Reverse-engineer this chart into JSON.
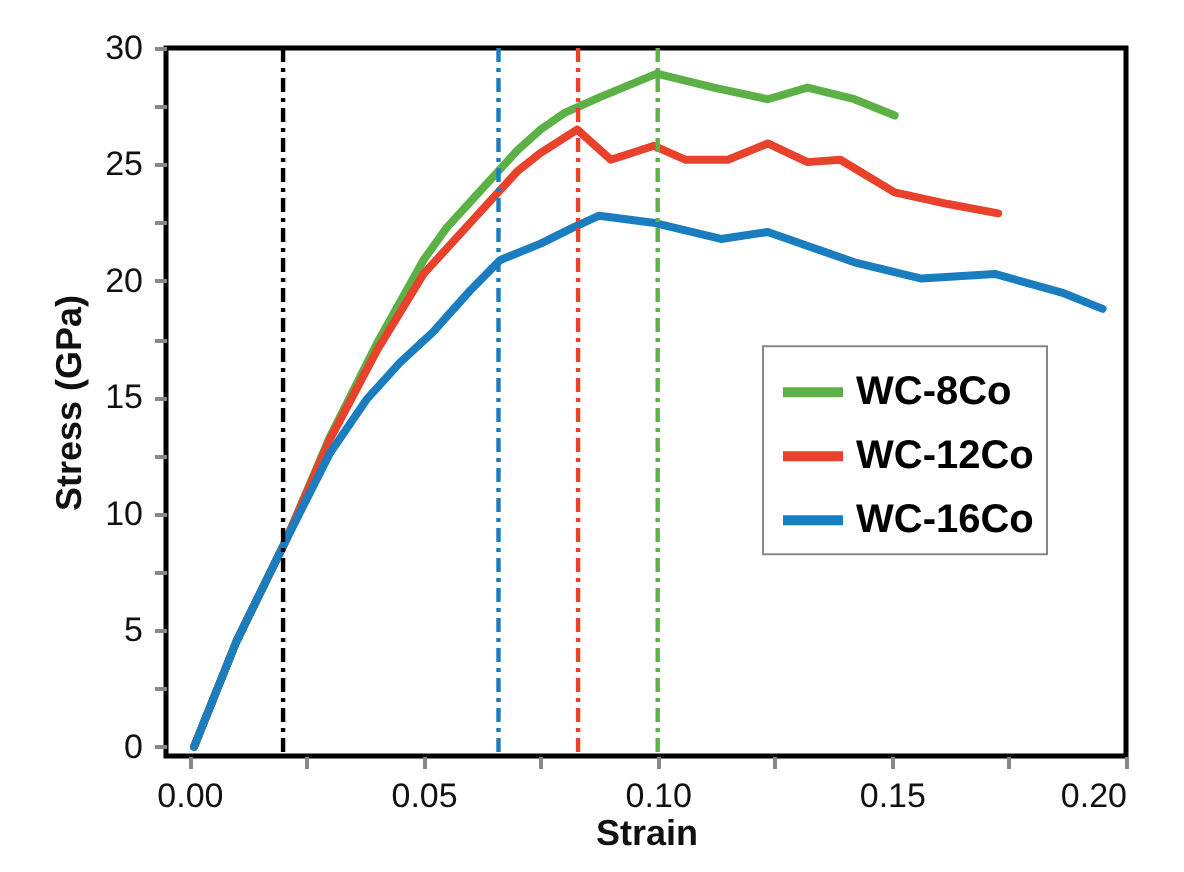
{
  "chart_data": {
    "type": "line",
    "xlabel": "Strain",
    "ylabel": "Stress (GPa)",
    "xlim": [
      -0.005,
      0.2
    ],
    "ylim": [
      -0.4,
      30
    ],
    "xticks": [
      {
        "value": 0,
        "label": "0.00"
      },
      {
        "value": 0.025,
        "label": null
      },
      {
        "value": 0.05,
        "label": "0.05"
      },
      {
        "value": 0.075,
        "label": null
      },
      {
        "value": 0.1,
        "label": "0.10"
      },
      {
        "value": 0.125,
        "label": null
      },
      {
        "value": 0.15,
        "label": "0.15"
      },
      {
        "value": 0.175,
        "label": null
      },
      {
        "value": 0.2,
        "label": "0.20"
      }
    ],
    "yticks": [
      0,
      {
        "value": 2.5,
        "label": null
      },
      5,
      {
        "value": 7.5,
        "label": null
      },
      10,
      {
        "value": 12.5,
        "label": null
      },
      15,
      {
        "value": 17.5,
        "label": null
      },
      20,
      {
        "value": 22.5,
        "label": null
      },
      25,
      {
        "value": 27.5,
        "label": null
      },
      30
    ],
    "legend": "right",
    "grid": false,
    "series": [
      {
        "name": "WC-8Co",
        "color": "#5cb146",
        "x": [
          0.001,
          0.01,
          0.0207,
          0.03,
          0.04,
          0.05,
          0.055,
          0.06,
          0.07,
          0.075,
          0.08,
          0.0878,
          0.0998,
          0.112,
          0.1235,
          0.132,
          0.142,
          0.1506
        ],
        "values": [
          0,
          4.5,
          8.9,
          13.3,
          17.3,
          20.9,
          22.3,
          23.4,
          25.6,
          26.5,
          27.2,
          27.9,
          28.9,
          28.3,
          27.8,
          28.3,
          27.8,
          27.1
        ]
      },
      {
        "name": "WC-12Co",
        "color": "#e8412c",
        "x": [
          0.001,
          0.01,
          0.0207,
          0.03,
          0.04,
          0.05,
          0.06,
          0.07,
          0.075,
          0.0828,
          0.09,
          0.0992,
          0.106,
          0.115,
          0.1235,
          0.132,
          0.139,
          0.1506,
          0.162,
          0.1727
        ],
        "values": [
          0,
          4.5,
          8.9,
          13.2,
          17.0,
          20.3,
          22.5,
          24.7,
          25.5,
          26.5,
          25.2,
          25.8,
          25.2,
          25.2,
          25.9,
          25.1,
          25.2,
          23.8,
          23.3,
          22.9
        ]
      },
      {
        "name": "WC-16Co",
        "color": "#1a7dc0",
        "x": [
          0.001,
          0.01,
          0.0207,
          0.03,
          0.0378,
          0.045,
          0.052,
          0.06,
          0.0664,
          0.075,
          0.082,
          0.0875,
          0.099,
          0.1135,
          0.1235,
          0.142,
          0.1563,
          0.172,
          0.1863,
          0.195
        ],
        "values": [
          0,
          4.5,
          8.9,
          12.6,
          14.9,
          16.5,
          17.8,
          19.6,
          20.9,
          21.6,
          22.3,
          22.8,
          22.5,
          21.8,
          22.1,
          20.8,
          20.1,
          20.3,
          19.5,
          18.8
        ]
      }
    ],
    "ref_lines": [
      {
        "axis": "x",
        "value": 0.02,
        "color": "#000000",
        "line_style": "dashdot"
      },
      {
        "axis": "x",
        "value": 0.066,
        "color": "#1a7dc0",
        "line_style": "dashdot"
      },
      {
        "axis": "x",
        "value": 0.083,
        "color": "#e8412c",
        "line_style": "dashdot"
      },
      {
        "axis": "x",
        "value": 0.1,
        "color": "#5cb146",
        "line_style": "dashdot"
      }
    ]
  }
}
